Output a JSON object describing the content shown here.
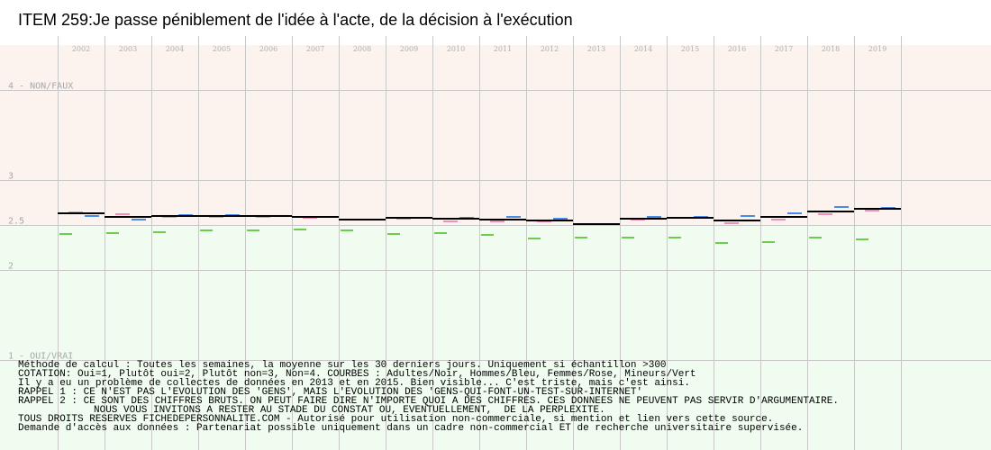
{
  "title": "ITEM 259:Je passe péniblement de l'idée à l'acte, de la décision à l'exécution",
  "colors": {
    "upper_band": "#fcf2ee",
    "lower_band": "#effcef",
    "grid": "#c8c8c8",
    "year_label": "#b0b0b0",
    "y_label": "#a8a8a8",
    "adultes": "#000000",
    "hommes": "#4a8be8",
    "femmes": "#ef8fb8",
    "mineurs": "#6ccc4c"
  },
  "chart_data": {
    "type": "line",
    "x": [
      "2002",
      "2003",
      "2004",
      "2005",
      "2006",
      "2007",
      "2008",
      "2009",
      "2010",
      "2011",
      "2012",
      "2013",
      "2014",
      "2015",
      "2016",
      "2017",
      "2018",
      "2019"
    ],
    "y_axis": {
      "range": [
        1,
        4
      ],
      "inverted": true,
      "ticks": [
        {
          "value": 4,
          "label": "4 - NON/FAUX"
        },
        {
          "value": 3,
          "label": "3"
        },
        {
          "value": 2.5,
          "label": "2.5"
        },
        {
          "value": 2,
          "label": "2"
        },
        {
          "value": 1,
          "label": "1 - OUI/VRAI"
        }
      ],
      "band_split": 2.5
    },
    "grid": true,
    "series": [
      {
        "name": "Adultes",
        "color_key": "adultes",
        "values": [
          2.63,
          2.59,
          2.6,
          2.6,
          2.6,
          2.59,
          2.56,
          2.58,
          2.57,
          2.56,
          2.55,
          2.51,
          2.57,
          2.58,
          2.55,
          2.59,
          2.65,
          2.68
        ]
      },
      {
        "name": "Hommes",
        "color_key": "hommes",
        "values": [
          2.6,
          2.56,
          2.61,
          2.61,
          2.6,
          2.59,
          2.56,
          2.58,
          2.58,
          2.59,
          2.57,
          2.51,
          2.59,
          2.59,
          2.6,
          2.63,
          2.7,
          2.69
        ]
      },
      {
        "name": "Femmes",
        "color_key": "femmes",
        "values": [
          2.64,
          2.62,
          2.59,
          2.59,
          2.59,
          2.58,
          2.56,
          2.57,
          2.54,
          2.54,
          2.54,
          2.51,
          2.56,
          2.58,
          2.52,
          2.56,
          2.62,
          2.66
        ]
      },
      {
        "name": "Mineurs",
        "color_key": "mineurs",
        "values": [
          2.4,
          2.41,
          2.42,
          2.44,
          2.44,
          2.45,
          2.44,
          2.4,
          2.41,
          2.39,
          2.35,
          2.36,
          2.36,
          2.36,
          2.3,
          2.31,
          2.36,
          2.34
        ]
      }
    ]
  },
  "notes": [
    "Méthode de calcul : Toutes les semaines, la moyenne sur les 30 derniers jours. Uniquement si échantillon >300",
    "COTATION: Oui=1, Plutôt oui=2, Plutôt non=3, Non=4. COURBES : Adultes/Noir, Hommes/Bleu, Femmes/Rose, Mineurs/Vert",
    "Il y a eu un problème de collectes de données en 2013 et en 2015. Bien visible... C'est triste, mais c'est ainsi.",
    "RAPPEL 1 : CE N'EST PAS L'EVOLUTION DES 'GENS', MAIS L'EVOLUTION DES 'GENS-QUI-FONT-UN-TEST-SUR-INTERNET'",
    "RAPPEL 2 : CE SONT DES CHIFFRES BRUTS. ON PEUT FAIRE DIRE N'IMPORTE QUOI A DES CHIFFRES. CES DONNEES NE PEUVENT PAS SERVIR D'ARGUMENTAIRE.",
    "NOUS VOUS INVITONS A RESTER AU STADE DU CONSTAT OU, EVENTUELLEMENT,  DE LA PERPLEXITE.",
    "TOUS DROITS RESERVES FICHEDEPERSONNALITE.COM - Autorisé pour utilisation non-commerciale, si mention et lien vers cette source.",
    "Demande d'accès aux données : Partenariat possible uniquement dans un cadre non-commercial ET de recherche universitaire supervisée."
  ]
}
